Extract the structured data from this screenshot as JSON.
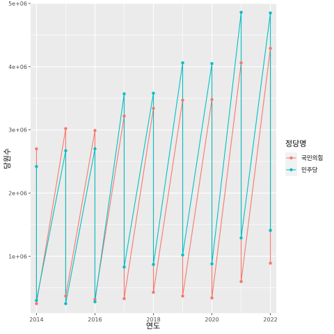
{
  "chart_data": {
    "type": "line",
    "xlabel": "연도",
    "ylabel": "당원수",
    "xlim": [
      2013.8,
      2022.2
    ],
    "ylim": [
      100000,
      5000000
    ],
    "x_ticks": [
      2014,
      2016,
      2018,
      2020,
      2022
    ],
    "x_tick_labels": [
      "2014",
      "2016",
      "2018",
      "2020",
      "2022"
    ],
    "y_ticks": [
      1000000,
      2000000,
      3000000,
      4000000,
      5000000
    ],
    "y_tick_labels": [
      "1e+06",
      "2e+06",
      "3e+06",
      "4e+06",
      "5e+06"
    ],
    "grid": true,
    "legend": {
      "title": "정당명",
      "position": "right"
    },
    "series": [
      {
        "name": "국민의힘",
        "color": "#F8766D",
        "points": [
          [
            2014,
            2700000
          ],
          [
            2014,
            250000
          ],
          [
            2015,
            3020000
          ],
          [
            2015,
            370000
          ],
          [
            2016,
            2990000
          ],
          [
            2016,
            320000
          ],
          [
            2017,
            3220000
          ],
          [
            2017,
            330000
          ],
          [
            2018,
            3340000
          ],
          [
            2018,
            430000
          ],
          [
            2019,
            3470000
          ],
          [
            2019,
            370000
          ],
          [
            2020,
            3480000
          ],
          [
            2020,
            340000
          ],
          [
            2021,
            4060000
          ],
          [
            2021,
            600000
          ],
          [
            2022,
            4290000
          ],
          [
            2022,
            890000
          ]
        ]
      },
      {
        "name": "민주당",
        "color": "#00BFC4",
        "points": [
          [
            2014,
            2420000
          ],
          [
            2014,
            300000
          ],
          [
            2015,
            2670000
          ],
          [
            2015,
            250000
          ],
          [
            2016,
            2700000
          ],
          [
            2016,
            280000
          ],
          [
            2017,
            3570000
          ],
          [
            2017,
            830000
          ],
          [
            2018,
            3580000
          ],
          [
            2018,
            870000
          ],
          [
            2019,
            4060000
          ],
          [
            2019,
            1020000
          ],
          [
            2020,
            4050000
          ],
          [
            2020,
            880000
          ],
          [
            2021,
            4860000
          ],
          [
            2021,
            1290000
          ],
          [
            2022,
            4850000
          ],
          [
            2022,
            1410000
          ]
        ]
      }
    ]
  }
}
